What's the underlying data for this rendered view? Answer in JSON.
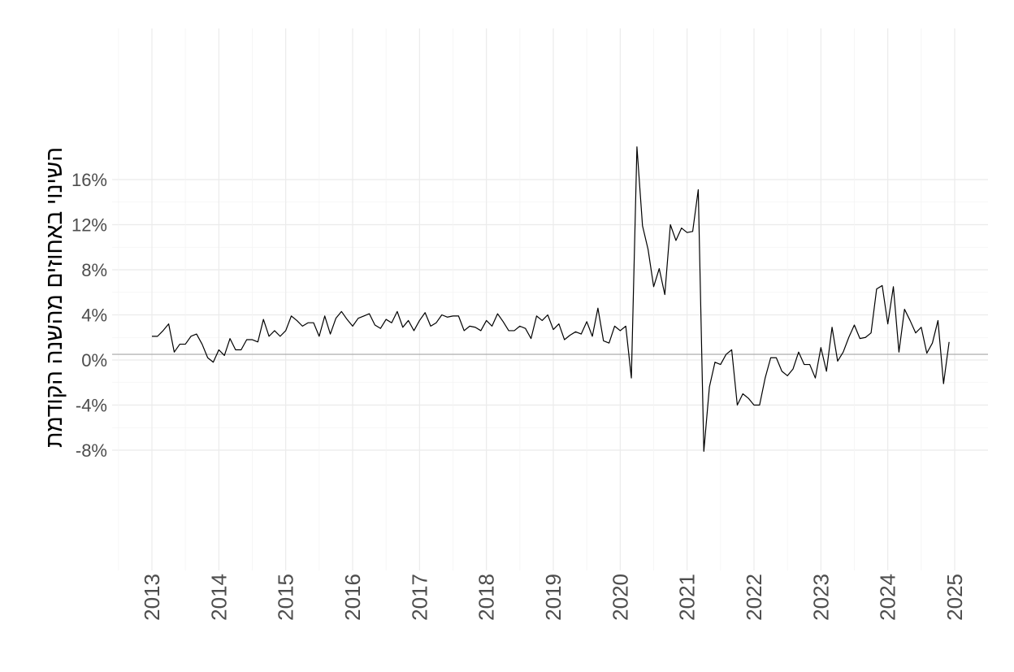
{
  "chart_data": {
    "type": "line",
    "title": "",
    "xlabel": "",
    "ylabel": "השינוי באחוזים מהשנה הקודמת",
    "y_tick_labels": [
      "-8%",
      "-4%",
      "0%",
      "4%",
      "8%",
      "12%",
      "16%"
    ],
    "x_tick_labels": [
      "2013",
      "2014",
      "2015",
      "2016",
      "2017",
      "2018",
      "2019",
      "2020",
      "2021",
      "2022",
      "2023",
      "2024",
      "2025"
    ],
    "x_range": [
      "2012-09",
      "2025-04"
    ],
    "y_range": [
      -18,
      30
    ],
    "y_ticks": [
      -8,
      -4,
      0,
      4,
      8,
      12,
      16
    ],
    "x_ticks": [
      2013,
      2014,
      2015,
      2016,
      2017,
      2018,
      2019,
      2020,
      2021,
      2022,
      2023,
      2024,
      2025
    ],
    "reference_line": {
      "y": 0.5,
      "color": "#a6a6a6"
    },
    "grid": true,
    "colors": {
      "line": "#000000",
      "grid": "#ebebeb",
      "tick_text": "#4d4d4d"
    },
    "series": [
      {
        "start": "2013-01",
        "frequency": "monthly",
        "values": [
          2.1,
          2.1,
          2.6,
          3.2,
          0.7,
          1.4,
          1.4,
          2.1,
          2.3,
          1.4,
          0.2,
          -0.2,
          0.9,
          0.4,
          1.9,
          0.9,
          0.9,
          1.8,
          1.8,
          1.6,
          3.6,
          2.1,
          2.6,
          2.1,
          2.6,
          3.9,
          3.5,
          3.0,
          3.3,
          3.3,
          2.1,
          3.9,
          2.3,
          3.7,
          4.3,
          3.6,
          3.0,
          3.7,
          3.9,
          4.1,
          3.1,
          2.8,
          3.6,
          3.3,
          4.3,
          2.9,
          3.5,
          2.6,
          3.5,
          4.2,
          3.0,
          3.3,
          4.0,
          3.8,
          3.9,
          3.9,
          2.6,
          3.0,
          2.9,
          2.6,
          3.5,
          3.0,
          4.1,
          3.4,
          2.6,
          2.6,
          3.0,
          2.8,
          1.9,
          3.9,
          3.5,
          4.0,
          2.7,
          3.2,
          1.8,
          2.2,
          2.5,
          2.3,
          3.4,
          2.1,
          4.6,
          1.7,
          1.5,
          3.0,
          2.6,
          3.0,
          -1.6,
          18.9,
          11.9,
          9.8,
          6.5,
          8.1,
          5.8,
          12.0,
          10.6,
          11.7,
          11.3,
          11.4,
          15.1,
          -8.1,
          -2.4,
          -0.2,
          -0.4,
          0.5,
          0.9,
          -4.0,
          -3.0,
          -3.4,
          -4.0,
          -4.0,
          -1.6,
          0.2,
          0.2,
          -1.0,
          -1.4,
          -0.8,
          0.7,
          -0.4,
          -0.4,
          -1.6,
          1.1,
          -1.0,
          2.9,
          -0.1,
          0.7,
          2.0,
          3.1,
          1.9,
          2.0,
          2.4,
          6.3,
          6.6,
          3.2,
          6.5,
          0.7,
          4.5,
          3.5,
          2.4,
          2.9,
          0.6,
          1.5,
          3.5,
          -2.1,
          1.6
        ]
      }
    ]
  }
}
